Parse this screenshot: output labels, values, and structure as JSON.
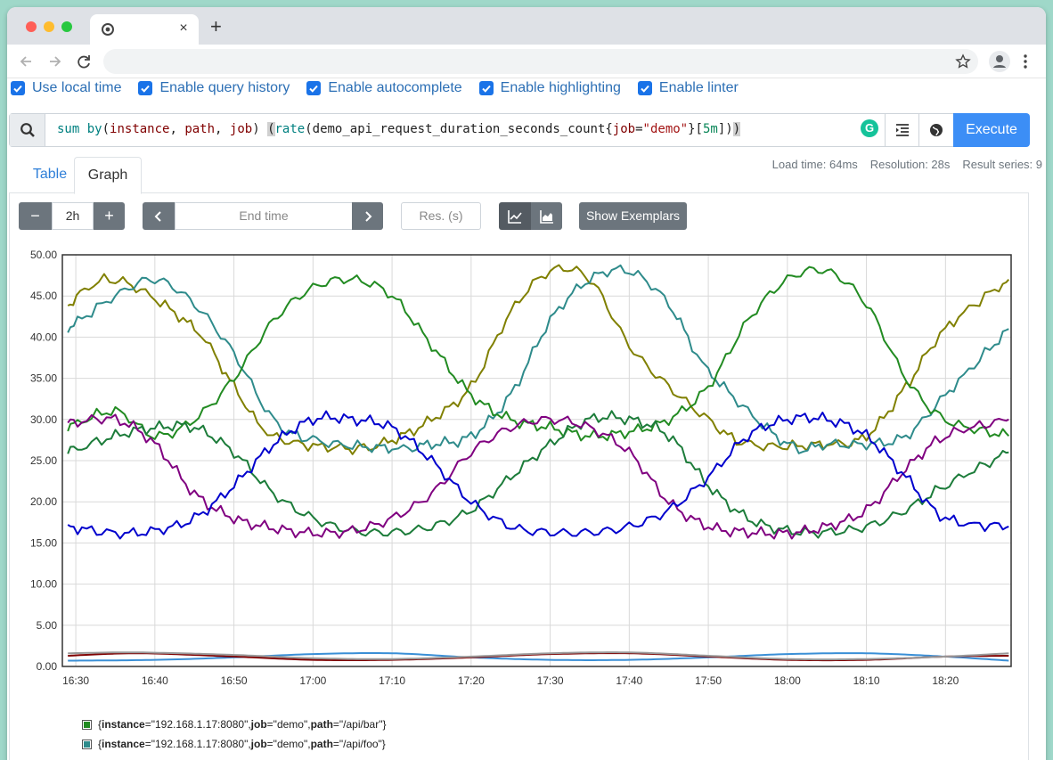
{
  "browser": {
    "tab_close": "×",
    "new_tab": "+"
  },
  "settings": [
    {
      "label": "Use local time"
    },
    {
      "label": "Enable query history"
    },
    {
      "label": "Enable autocomplete"
    },
    {
      "label": "Enable highlighting"
    },
    {
      "label": "Enable linter"
    }
  ],
  "query": {
    "tokens": [
      {
        "t": "sum",
        "c": "fn"
      },
      {
        "t": " ",
        "c": ""
      },
      {
        "t": "by",
        "c": "kw"
      },
      {
        "t": "(",
        "c": ""
      },
      {
        "t": "instance",
        "c": "lbl"
      },
      {
        "t": ", ",
        "c": ""
      },
      {
        "t": "path",
        "c": "lbl"
      },
      {
        "t": ", ",
        "c": ""
      },
      {
        "t": "job",
        "c": "lbl"
      },
      {
        "t": ") ",
        "c": ""
      },
      {
        "t": "(",
        "c": "br"
      },
      {
        "t": "rate",
        "c": "fn"
      },
      {
        "t": "(demo_api_request_duration_seconds_count{",
        "c": ""
      },
      {
        "t": "job",
        "c": "lbl"
      },
      {
        "t": "=",
        "c": ""
      },
      {
        "t": "\"demo\"",
        "c": "str"
      },
      {
        "t": "}[",
        "c": ""
      },
      {
        "t": "5m",
        "c": "num"
      },
      {
        "t": "])",
        "c": ""
      },
      {
        "t": ")",
        "c": "br"
      }
    ],
    "execute_label": "Execute"
  },
  "panel_tabs": {
    "table": "Table",
    "graph": "Graph"
  },
  "stats": {
    "load_time": "Load time: 64ms",
    "resolution": "Resolution: 28s",
    "result_series": "Result series: 9"
  },
  "controls": {
    "range_minus": "−",
    "range": "2h",
    "range_plus": "+",
    "end_time_placeholder": "End time",
    "res_placeholder": "Res. (s)",
    "exemplars": "Show Exemplars"
  },
  "chart_data": {
    "type": "line",
    "ylim": [
      0,
      50
    ],
    "y_ticks": [
      "50.00",
      "45.00",
      "40.00",
      "35.00",
      "30.00",
      "25.00",
      "20.00",
      "15.00",
      "10.00",
      "5.00",
      "0.00"
    ],
    "x_ticks": [
      "16:30",
      "16:40",
      "16:50",
      "17:00",
      "17:10",
      "17:20",
      "17:30",
      "17:40",
      "17:50",
      "18:00",
      "18:10",
      "18:20"
    ],
    "x_tick_values": [
      0,
      10,
      20,
      30,
      40,
      50,
      60,
      70,
      80,
      90,
      100,
      110
    ],
    "xlim": [
      -1.7,
      118.3
    ],
    "grid": true,
    "series": [
      {
        "color": "#808000",
        "t": [
          -1,
          5,
          15,
          20,
          25,
          35,
          40,
          45,
          50,
          55,
          60,
          65,
          70,
          75,
          80,
          85,
          95,
          100,
          105,
          110,
          118
        ],
        "v": [
          44,
          47,
          41,
          34,
          28,
          26.5,
          27.5,
          30,
          34,
          43,
          48,
          47,
          39,
          34,
          30,
          27,
          27,
          28,
          34,
          41,
          47
        ]
      },
      {
        "color": "#2e8b8b",
        "t": [
          -1,
          5,
          10,
          15,
          20,
          25,
          30,
          40,
          45,
          50,
          55,
          60,
          65,
          70,
          75,
          80,
          90,
          95,
          100,
          105,
          110,
          118
        ],
        "v": [
          41,
          45,
          47,
          44,
          38,
          30,
          27.5,
          26.5,
          27,
          28,
          33,
          42,
          47,
          48,
          44,
          36,
          27,
          27,
          27,
          28,
          33,
          41
        ]
      },
      {
        "color": "#228b22",
        "t": [
          -1,
          5,
          10,
          15,
          20,
          25,
          30,
          35,
          40,
          45,
          50,
          55,
          60,
          65,
          70,
          75,
          80,
          85,
          90,
          95,
          100,
          105,
          110,
          118
        ],
        "v": [
          29,
          31,
          28,
          30,
          35,
          42,
          46,
          47,
          45,
          39,
          33,
          30,
          29,
          28,
          28.5,
          30,
          34,
          42,
          47,
          48,
          44,
          35,
          30,
          28
        ]
      },
      {
        "color": "#1c7c3a",
        "t": [
          -1,
          5,
          10,
          15,
          20,
          25,
          30,
          35,
          40,
          45,
          50,
          55,
          60,
          65,
          70,
          75,
          80,
          85,
          90,
          95,
          100,
          105,
          110,
          118
        ],
        "v": [
          26,
          28,
          29,
          29,
          26,
          21,
          18,
          16.5,
          16.3,
          17,
          19,
          23,
          27,
          30,
          30,
          28,
          22,
          18,
          16.5,
          16.3,
          17,
          19,
          22,
          26
        ]
      },
      {
        "color": "#800080",
        "t": [
          -1,
          5,
          10,
          15,
          20,
          25,
          30,
          35,
          40,
          45,
          50,
          55,
          60,
          65,
          70,
          75,
          80,
          85,
          90,
          95,
          100,
          105,
          110,
          118
        ],
        "v": [
          29.5,
          30,
          27,
          21,
          18,
          16.8,
          16.2,
          16.5,
          18,
          21,
          26,
          29,
          30,
          29,
          26,
          20,
          17,
          16.3,
          16.2,
          17,
          19,
          24,
          28,
          30
        ]
      },
      {
        "color": "#0000cd",
        "t": [
          -1,
          5,
          10,
          15,
          20,
          25,
          30,
          35,
          40,
          45,
          50,
          55,
          60,
          65,
          70,
          75,
          80,
          85,
          90,
          95,
          100,
          105,
          110,
          118
        ],
        "v": [
          17,
          16.2,
          16.5,
          18,
          22,
          27,
          30,
          30,
          29,
          25,
          20,
          17,
          16.3,
          16.3,
          17,
          19,
          23,
          28,
          30,
          30,
          28,
          23,
          18,
          17
        ]
      },
      {
        "color": "#3a8fd6",
        "t": [
          -1,
          10,
          20,
          30,
          40,
          50,
          60,
          70,
          80,
          90,
          100,
          110,
          118
        ],
        "v": [
          0.7,
          0.8,
          1.1,
          1.5,
          1.6,
          1.1,
          0.8,
          0.8,
          1.1,
          1.5,
          1.6,
          1.2,
          0.7
        ]
      },
      {
        "color": "#800000",
        "t": [
          -1,
          8,
          20,
          30,
          40,
          50,
          60,
          70,
          80,
          90,
          100,
          110,
          118
        ],
        "v": [
          1.3,
          1.6,
          1.2,
          0.8,
          0.8,
          1.1,
          1.5,
          1.6,
          1.2,
          0.8,
          0.8,
          1.2,
          1.3
        ]
      },
      {
        "color": "#999999",
        "t": [
          -1,
          8,
          20,
          30,
          40,
          50,
          60,
          70,
          80,
          90,
          100,
          110,
          118
        ],
        "v": [
          1.6,
          1.7,
          1.4,
          1.0,
          0.9,
          1.2,
          1.6,
          1.7,
          1.3,
          0.9,
          0.9,
          1.2,
          1.6
        ]
      }
    ]
  },
  "legend": [
    {
      "color": "#228b22",
      "parts": [
        {
          "t": "{",
          "b": false
        },
        {
          "t": "instance",
          "b": true
        },
        {
          "t": "=\"192.168.1.17:8080\", ",
          "b": false
        },
        {
          "t": "job",
          "b": true
        },
        {
          "t": "=\"demo\", ",
          "b": false
        },
        {
          "t": "path",
          "b": true
        },
        {
          "t": "=\"/api/bar\"}",
          "b": false
        }
      ]
    },
    {
      "color": "#2e8b8b",
      "parts": [
        {
          "t": "{",
          "b": false
        },
        {
          "t": "instance",
          "b": true
        },
        {
          "t": "=\"192.168.1.17:8080\", ",
          "b": false
        },
        {
          "t": "job",
          "b": true
        },
        {
          "t": "=\"demo\", ",
          "b": false
        },
        {
          "t": "path",
          "b": true
        },
        {
          "t": "=\"/api/foo\"}",
          "b": false
        }
      ]
    }
  ]
}
